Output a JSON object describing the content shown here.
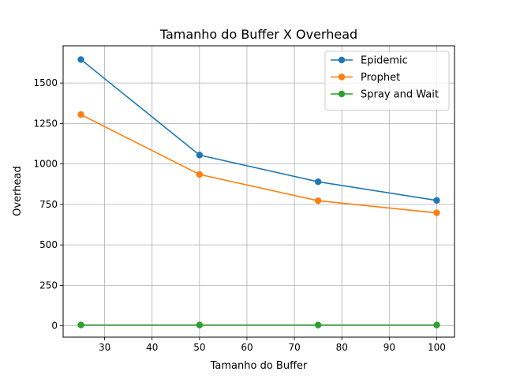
{
  "chart_data": {
    "type": "line",
    "title": "Tamanho do Buffer X Overhead",
    "xlabel": "Tamanho do Buffer",
    "ylabel": "Overhead",
    "x": [
      25,
      50,
      75,
      100
    ],
    "series": [
      {
        "name": "Epidemic",
        "color": "#1f77b4",
        "values": [
          1645,
          1055,
          890,
          775
        ]
      },
      {
        "name": "Prophet",
        "color": "#ff7f0e",
        "values": [
          1305,
          935,
          773,
          698
        ]
      },
      {
        "name": "Spray and Wait",
        "color": "#2ca02c",
        "values": [
          5,
          5,
          5,
          5
        ]
      }
    ],
    "xlim": [
      21.25,
      103.75
    ],
    "ylim": [
      -70,
      1730
    ],
    "xticks": [
      30,
      40,
      50,
      60,
      70,
      80,
      90,
      100
    ],
    "xtick_labels": [
      "30",
      "40",
      "50",
      "60",
      "70",
      "80",
      "90",
      "100"
    ],
    "yticks": [
      0,
      250,
      500,
      750,
      1000,
      1250,
      1500
    ],
    "ytick_labels": [
      "0",
      "250",
      "500",
      "750",
      "1000",
      "1250",
      "1500"
    ],
    "grid": true,
    "legend_position": "top-right",
    "marker": "circle"
  }
}
